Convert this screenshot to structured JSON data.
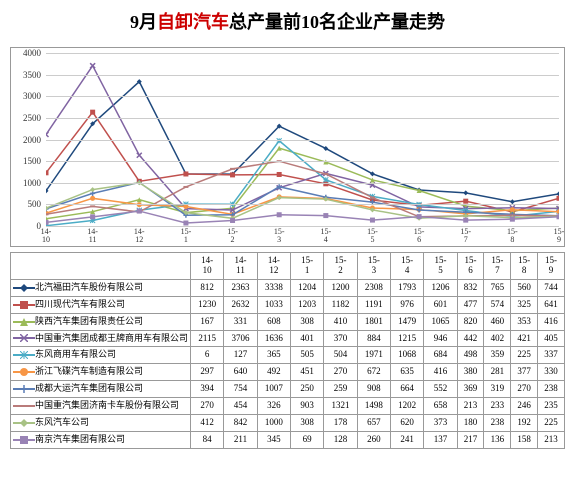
{
  "title": {
    "prefix": "9月",
    "highlight": "自卸汽车",
    "suffix": "总产量前10名企业产量走势",
    "fontsize": 18,
    "highlight_color": "#cc0000",
    "color": "#000000"
  },
  "chart": {
    "type": "line",
    "ymin": 0,
    "ymax": 4000,
    "ystep": 500,
    "background_color": "#ffffff",
    "grid_color": "#cccccc",
    "border_color": "#999999",
    "categories": [
      "14-10",
      "14-11",
      "14-12",
      "15-1",
      "15-2",
      "15-3",
      "15-4",
      "15-5",
      "15-6",
      "15-7",
      "15-8",
      "15-9"
    ],
    "series": [
      {
        "name": "北汽福田汽车股份有限公司",
        "color": "#1f497d",
        "marker": "diamond",
        "values": [
          812,
          2363,
          3338,
          1204,
          1200,
          2308,
          1793,
          1206,
          832,
          765,
          560,
          744
        ]
      },
      {
        "name": "四川现代汽车有限公司",
        "color": "#c0504d",
        "marker": "square",
        "values": [
          1230,
          2632,
          1033,
          1203,
          1182,
          1191,
          976,
          601,
          477,
          574,
          325,
          641
        ]
      },
      {
        "name": "陕西汽车集团有限责任公司",
        "color": "#9bbb59",
        "marker": "triangle",
        "values": [
          167,
          331,
          608,
          308,
          410,
          1801,
          1479,
          1065,
          820,
          460,
          353,
          416
        ]
      },
      {
        "name": "中国重汽集团成都王牌商用车有限公司",
        "color": "#8064a2",
        "marker": "x",
        "values": [
          2115,
          3706,
          1636,
          401,
          370,
          884,
          1215,
          946,
          442,
          402,
          421,
          405
        ]
      },
      {
        "name": "东风商用车有限公司",
        "color": "#4bacc6",
        "marker": "asterisk",
        "values": [
          6,
          127,
          365,
          505,
          504,
          1971,
          1068,
          684,
          498,
          359,
          225,
          337
        ]
      },
      {
        "name": "浙江飞碟汽车制造有限公司",
        "color": "#f79646",
        "marker": "circle",
        "values": [
          297,
          640,
          492,
          451,
          270,
          672,
          635,
          416,
          380,
          281,
          377,
          330
        ]
      },
      {
        "name": "成都大运汽车集团有限公司",
        "color": "#5a7db5",
        "marker": "plus",
        "values": [
          394,
          754,
          1007,
          250,
          259,
          908,
          664,
          552,
          369,
          319,
          270,
          238
        ]
      },
      {
        "name": "中国重汽集团济南卡车股份有限公司",
        "color": "#b97b7a",
        "marker": "dash",
        "values": [
          270,
          454,
          326,
          903,
          1321,
          1498,
          1202,
          658,
          213,
          233,
          246,
          235
        ]
      },
      {
        "name": "东风汽车公司",
        "color": "#a8c285",
        "marker": "diamond",
        "values": [
          412,
          842,
          1000,
          308,
          178,
          657,
          620,
          373,
          180,
          238,
          192,
          225
        ]
      },
      {
        "name": "南京汽车集团有限公司",
        "color": "#9983b5",
        "marker": "square",
        "values": [
          84,
          211,
          345,
          69,
          128,
          260,
          241,
          137,
          217,
          136,
          158,
          213
        ]
      }
    ]
  }
}
